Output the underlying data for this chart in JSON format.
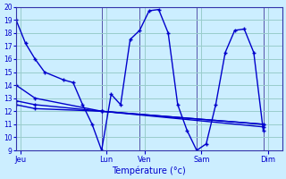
{
  "background_color": "#cceeff",
  "grid_color": "#99cccc",
  "line_color": "#0000cc",
  "xlabel": "Température (°c)",
  "ylim": [
    9,
    20
  ],
  "yticks": [
    9,
    10,
    11,
    12,
    13,
    14,
    15,
    16,
    17,
    18,
    19,
    20
  ],
  "xlim": [
    0,
    28
  ],
  "x_day_labels": [
    "Jeu",
    "Lun",
    "Ven",
    "Sam",
    "Dim"
  ],
  "x_day_positions": [
    0.5,
    9.5,
    13.5,
    19.5,
    26.5
  ],
  "x_vline_positions": [
    0,
    9,
    13,
    19,
    26
  ],
  "series1_x": [
    0,
    1,
    2,
    3,
    5,
    6,
    7,
    8,
    9,
    10,
    11,
    12,
    13,
    14,
    15,
    16,
    17,
    18,
    19,
    20,
    21,
    22,
    23,
    24,
    25,
    26
  ],
  "series1_y": [
    19.0,
    17.2,
    16.0,
    15.0,
    14.4,
    14.2,
    12.5,
    11.0,
    9.0,
    13.3,
    12.5,
    17.5,
    18.2,
    19.7,
    19.8,
    18.0,
    12.5,
    10.5,
    9.0,
    9.5,
    12.5,
    16.5,
    18.2,
    18.3,
    16.5,
    10.5
  ],
  "series2_x": [
    0,
    2,
    9,
    26
  ],
  "series2_y": [
    14.0,
    13.0,
    12.0,
    11.0
  ],
  "series3_x": [
    0,
    2,
    9,
    26
  ],
  "series3_y": [
    12.5,
    12.2,
    12.0,
    11.0
  ],
  "series4_x": [
    0,
    2,
    9,
    26
  ],
  "series4_y": [
    12.8,
    12.5,
    12.0,
    10.8
  ]
}
